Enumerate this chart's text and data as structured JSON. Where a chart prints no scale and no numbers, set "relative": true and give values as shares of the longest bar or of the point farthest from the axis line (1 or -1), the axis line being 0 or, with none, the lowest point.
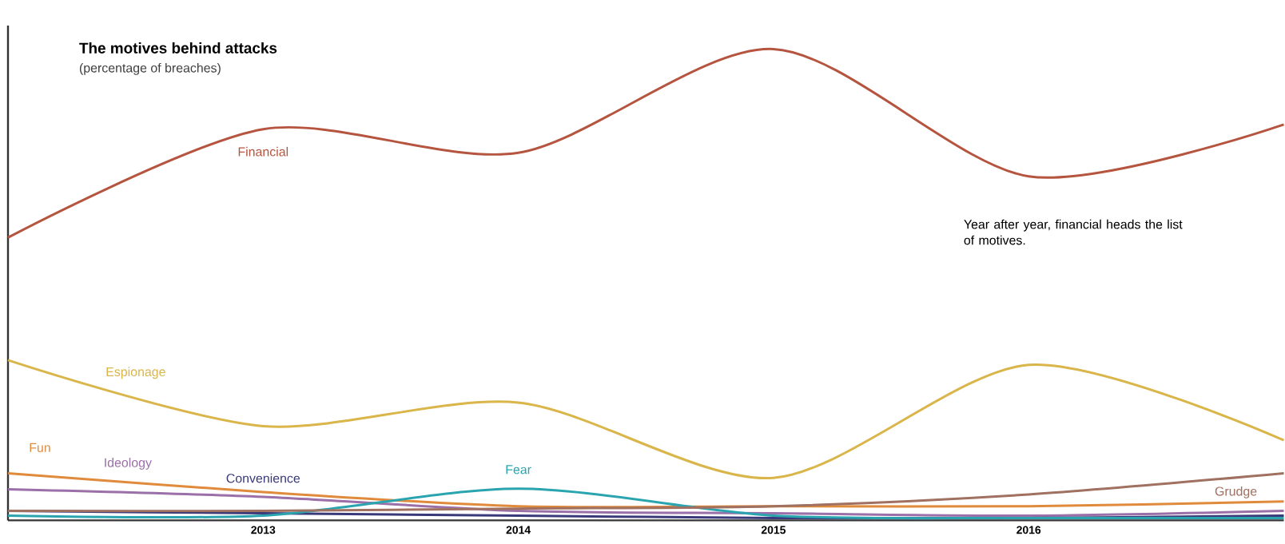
{
  "chart_data": {
    "type": "line",
    "title": "The motives behind attacks",
    "subtitle": "(percentage of breaches)",
    "relative": true,
    "x": [
      2012,
      2013,
      2014,
      2015,
      2016,
      2017
    ],
    "xlim": [
      2012,
      2017
    ],
    "xticks": [
      2013,
      2014,
      2015,
      2016
    ],
    "annotations": [
      "Year after year, financial heads the list of motives."
    ],
    "series": [
      {
        "name": "Financial",
        "color": "#b5553f",
        "values": [
          0.6,
          0.83,
          0.78,
          1.0,
          0.73,
          0.84
        ]
      },
      {
        "name": "Espionage",
        "color": "#d9b54a",
        "values": [
          0.34,
          0.2,
          0.25,
          0.09,
          0.33,
          0.17
        ]
      },
      {
        "name": "Fun",
        "color": "#e08a3c",
        "values": [
          0.1,
          0.06,
          0.03,
          0.03,
          0.03,
          0.04
        ]
      },
      {
        "name": "Ideology",
        "color": "#9b6fa8",
        "values": [
          0.066,
          0.05,
          0.02,
          0.015,
          0.01,
          0.02
        ]
      },
      {
        "name": "Convenience",
        "color": "#3a3a7a",
        "values": [
          0.02,
          0.015,
          0.01,
          0.005,
          0.005,
          0.01
        ]
      },
      {
        "name": "Fear",
        "color": "#2aa5b0",
        "values": [
          0.01,
          0.01,
          0.067,
          0.01,
          0.005,
          0.005
        ]
      },
      {
        "name": "Grudge",
        "color": "#a07060",
        "values": [
          0.02,
          0.02,
          0.025,
          0.03,
          0.055,
          0.1
        ]
      }
    ]
  }
}
